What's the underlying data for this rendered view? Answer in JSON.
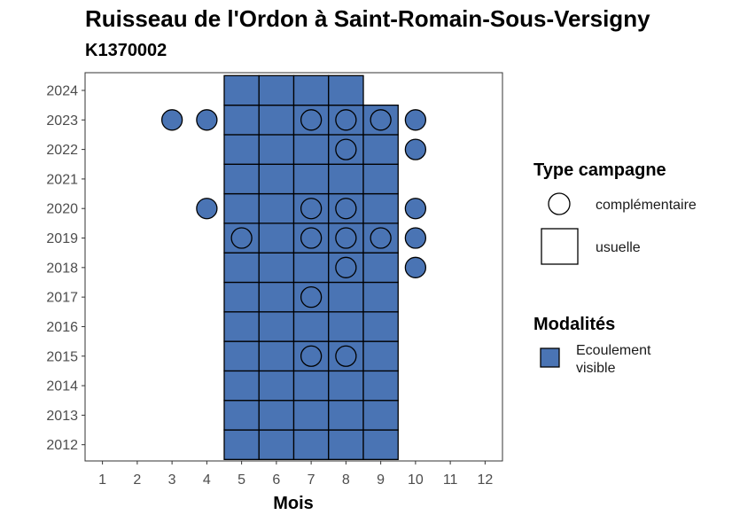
{
  "title": "Ruisseau de l'Ordon à Saint-Romain-Sous-Versigny",
  "subtitle": "K1370002",
  "colors": {
    "fill": "#4a74b4",
    "stroke": "#000000",
    "panel_border": "#333333"
  },
  "chart_data": {
    "type": "heatmap",
    "xlabel": "Mois",
    "ylabel": "",
    "x_ticks": [
      1,
      2,
      3,
      4,
      5,
      6,
      7,
      8,
      9,
      10,
      11,
      12
    ],
    "y_ticks": [
      2012,
      2013,
      2014,
      2015,
      2016,
      2017,
      2018,
      2019,
      2020,
      2021,
      2022,
      2023,
      2024
    ],
    "xlim": [
      0.5,
      12.5
    ],
    "ylim": [
      2011.45,
      2024.6
    ],
    "usuelle_cells": [
      {
        "year": 2012,
        "months": [
          5,
          6,
          7,
          8,
          9
        ]
      },
      {
        "year": 2013,
        "months": [
          5,
          6,
          7,
          8,
          9
        ]
      },
      {
        "year": 2014,
        "months": [
          5,
          6,
          7,
          8,
          9
        ]
      },
      {
        "year": 2015,
        "months": [
          5,
          6,
          7,
          8,
          9
        ]
      },
      {
        "year": 2016,
        "months": [
          5,
          6,
          7,
          8,
          9
        ]
      },
      {
        "year": 2017,
        "months": [
          5,
          6,
          7,
          8,
          9
        ]
      },
      {
        "year": 2018,
        "months": [
          5,
          6,
          7,
          8,
          9
        ]
      },
      {
        "year": 2019,
        "months": [
          5,
          6,
          7,
          8,
          9
        ]
      },
      {
        "year": 2020,
        "months": [
          5,
          6,
          7,
          8,
          9
        ]
      },
      {
        "year": 2021,
        "months": [
          5,
          6,
          7,
          8,
          9
        ]
      },
      {
        "year": 2022,
        "months": [
          5,
          6,
          7,
          8,
          9
        ]
      },
      {
        "year": 2023,
        "months": [
          5,
          6,
          7,
          8,
          9
        ]
      },
      {
        "year": 2024,
        "months": [
          5,
          6,
          7,
          8
        ]
      }
    ],
    "complementaire_points": [
      {
        "year": 2023,
        "month": 3
      },
      {
        "year": 2023,
        "month": 4
      },
      {
        "year": 2023,
        "month": 7
      },
      {
        "year": 2023,
        "month": 8
      },
      {
        "year": 2023,
        "month": 9
      },
      {
        "year": 2023,
        "month": 10
      },
      {
        "year": 2022,
        "month": 8
      },
      {
        "year": 2022,
        "month": 10
      },
      {
        "year": 2020,
        "month": 4
      },
      {
        "year": 2020,
        "month": 7
      },
      {
        "year": 2020,
        "month": 8
      },
      {
        "year": 2020,
        "month": 10
      },
      {
        "year": 2019,
        "month": 5
      },
      {
        "year": 2019,
        "month": 7
      },
      {
        "year": 2019,
        "month": 8
      },
      {
        "year": 2019,
        "month": 9
      },
      {
        "year": 2019,
        "month": 10
      },
      {
        "year": 2018,
        "month": 8
      },
      {
        "year": 2018,
        "month": 10
      },
      {
        "year": 2017,
        "month": 7
      },
      {
        "year": 2015,
        "month": 7
      },
      {
        "year": 2015,
        "month": 8
      }
    ],
    "modalite": "Ecoulement visible",
    "legend": {
      "type_title": "Type campagne",
      "type_items": [
        "complémentaire",
        "usuelle"
      ],
      "modalites_title": "Modalités",
      "modalites_items": [
        "Ecoulement visible"
      ],
      "placement": "right"
    }
  }
}
